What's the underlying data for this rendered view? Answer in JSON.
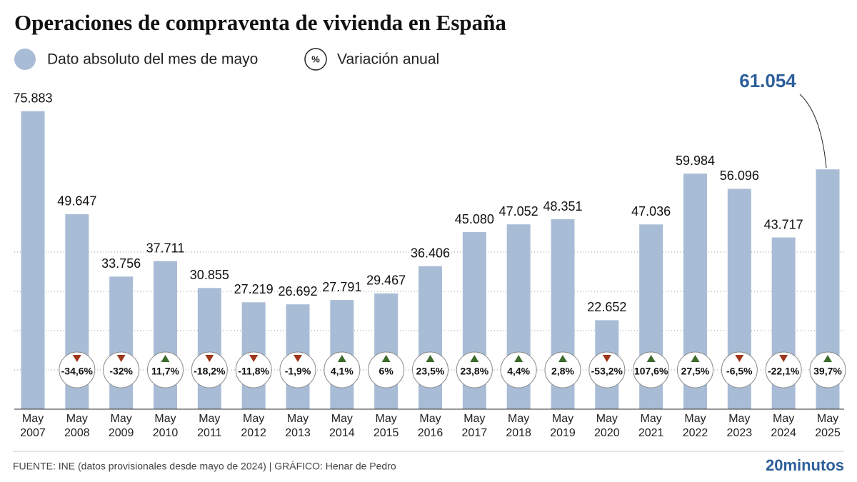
{
  "chart_data": {
    "type": "bar",
    "title": "Operaciones de compraventa de vivienda en España",
    "categories": [
      "May 2007",
      "May 2008",
      "May 2009",
      "May 2010",
      "May 2011",
      "May 2012",
      "May 2013",
      "May 2014",
      "May 2015",
      "May 2016",
      "May 2017",
      "May 2018",
      "May 2019",
      "May 2020",
      "May 2021",
      "May 2022",
      "May 2023",
      "May 2024",
      "May 2025"
    ],
    "series": [
      {
        "name": "Dato absoluto del mes de mayo",
        "color": "#a9bcd6",
        "values": [
          75883,
          49647,
          33756,
          37711,
          30855,
          27219,
          26692,
          27791,
          29467,
          36406,
          45080,
          47052,
          48351,
          22652,
          47036,
          59984,
          56096,
          43717,
          61054
        ],
        "value_labels": [
          "75.883",
          "49.647",
          "33.756",
          "37.711",
          "30.855",
          "27.219",
          "26.692",
          "27.791",
          "29.467",
          "36.406",
          "45.080",
          "47.052",
          "48.351",
          "22.652",
          "47.036",
          "59.984",
          "56.096",
          "43.717",
          "61.054"
        ]
      },
      {
        "name": "Variación anual",
        "symbol": "%",
        "values": [
          null,
          -34.6,
          -32,
          11.7,
          -18.2,
          -11.8,
          -1.9,
          4.1,
          6,
          23.5,
          23.8,
          4.4,
          2.8,
          -53.2,
          107.6,
          27.5,
          -6.5,
          -22.1,
          39.7
        ],
        "value_labels": [
          null,
          "-34,6%",
          "-32%",
          "11,7%",
          "-18,2%",
          "-11,8%",
          "-1,9%",
          "4,1%",
          "6%",
          "23,5%",
          "23,8%",
          "4,4%",
          "2,8%",
          "-53,2%",
          "107,6%",
          "27,5%",
          "-6,5%",
          "-22,1%",
          "39,7%"
        ]
      }
    ],
    "ylim": [
      0,
      80000
    ],
    "yticks": [
      10000,
      20000,
      30000,
      40000
    ],
    "grid": true,
    "source": "FUENTE: INE (datos provisionales desde mayo de 2024)  |  GRÁFICO: Henar de Pedro",
    "brand": "20minutos"
  }
}
